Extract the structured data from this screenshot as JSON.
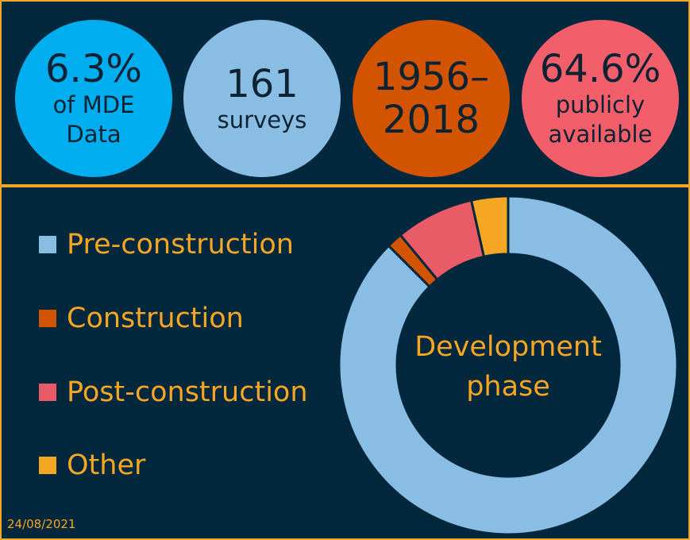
{
  "stats": [
    {
      "big": "6.3%",
      "small_lines": [
        "of MDE",
        "Data"
      ],
      "color": "#00aeef"
    },
    {
      "big": "161",
      "small_lines": [
        "surveys"
      ],
      "color": "#89bde3"
    },
    {
      "big_lines": [
        "1956–",
        "2018"
      ],
      "color": "#d35400"
    },
    {
      "big": "64.6%",
      "small_lines": [
        "publicly",
        "available"
      ],
      "color": "#f25f6b"
    }
  ],
  "chart_data": {
    "type": "pie",
    "variant": "donut",
    "center_label_lines": [
      "Development",
      "phase"
    ],
    "categories": [
      "Pre-construction",
      "Construction",
      "Post-construction",
      "Other"
    ],
    "values": [
      87.5,
      1.5,
      7.5,
      3.5
    ],
    "colors": [
      "#89bde3",
      "#d35400",
      "#e85b67",
      "#f5a623"
    ],
    "legend_position": "left"
  },
  "date": "24/08/2021"
}
